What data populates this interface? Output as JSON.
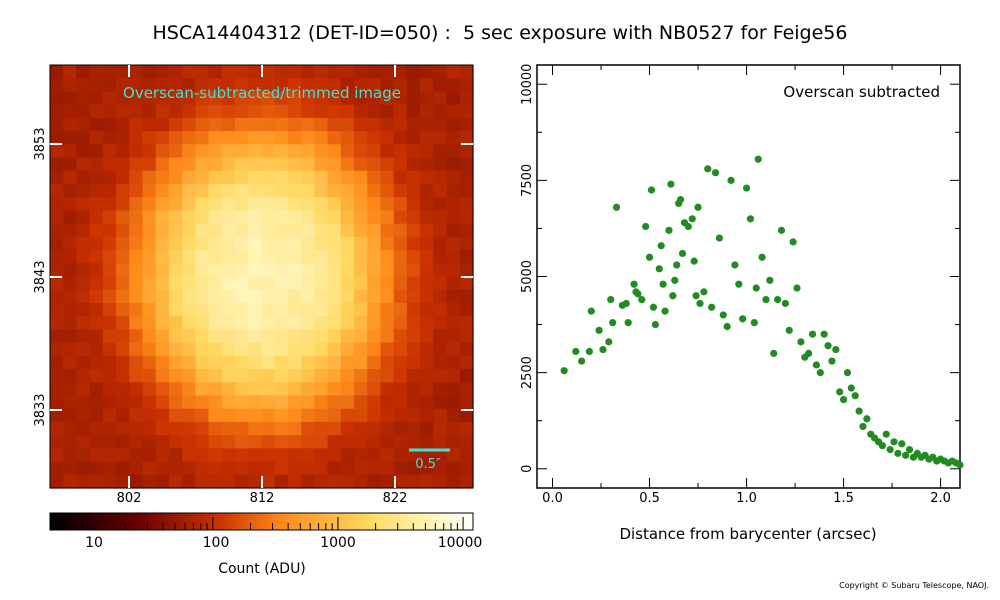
{
  "title": "HSCA14404312 (DET-ID=050) :  5 sec exposure with NB0527 for Feige56",
  "copyright": "Copyright © Subaru Telescope, NAOJ.",
  "image_panel": {
    "label": "Overscan-subtracted/trimmed image",
    "label_color": "#3ee0e0",
    "scale_bar_label": "0.5″",
    "x_ticks": [
      "802",
      "812",
      "822"
    ],
    "y_ticks": [
      "3853",
      "3843",
      "3833"
    ],
    "colorbar": {
      "label": "Count (ADU)",
      "ticks": [
        "10",
        "100",
        "1000",
        "10000"
      ],
      "range": [
        5,
        12000
      ],
      "colormap": "afmhot",
      "scale": "log"
    }
  },
  "chart_data": {
    "type": "scatter",
    "annotation": "Overscan subtracted",
    "xlabel": "Distance from barycenter (arcsec)",
    "ylabel": "",
    "xlim": [
      -0.08,
      2.1
    ],
    "ylim": [
      -500,
      10500
    ],
    "x_ticks": [
      "0.0",
      "0.5",
      "1.0",
      "1.5",
      "2.0"
    ],
    "y_ticks": [
      "0",
      "2500",
      "5000",
      "7500",
      "10000"
    ],
    "marker_color": "#228b22",
    "series": [
      {
        "x": [
          0.06,
          0.12,
          0.15,
          0.19,
          0.2,
          0.24,
          0.26,
          0.29,
          0.3,
          0.31,
          0.33,
          0.36,
          0.38,
          0.39,
          0.42,
          0.43,
          0.44,
          0.46,
          0.48,
          0.5,
          0.51,
          0.52,
          0.53,
          0.55,
          0.56,
          0.57,
          0.58,
          0.6,
          0.61,
          0.62,
          0.63,
          0.64,
          0.65,
          0.66,
          0.67,
          0.68,
          0.7,
          0.72,
          0.73,
          0.74,
          0.75,
          0.76,
          0.78,
          0.8,
          0.82,
          0.84,
          0.86,
          0.88,
          0.9,
          0.92,
          0.94,
          0.96,
          0.98,
          1.0,
          1.02,
          1.04,
          1.05,
          1.06,
          1.08,
          1.1,
          1.12,
          1.14,
          1.16,
          1.18,
          1.2,
          1.22,
          1.24,
          1.26,
          1.28,
          1.3,
          1.32,
          1.34,
          1.36,
          1.38,
          1.4,
          1.42,
          1.44,
          1.46,
          1.48,
          1.5,
          1.52,
          1.54,
          1.56,
          1.58,
          1.6,
          1.62,
          1.64,
          1.66,
          1.68,
          1.7,
          1.72,
          1.74,
          1.76,
          1.78,
          1.8,
          1.82,
          1.84,
          1.86,
          1.88,
          1.9,
          1.92,
          1.94,
          1.96,
          1.98,
          2.0,
          2.02,
          2.04,
          2.06,
          2.08,
          2.1
        ],
        "y": [
          2550,
          3050,
          2800,
          3050,
          4100,
          3600,
          3100,
          3300,
          4400,
          3800,
          6800,
          4250,
          4300,
          3800,
          4800,
          4600,
          4550,
          4400,
          6300,
          5500,
          7250,
          4200,
          3750,
          5200,
          5800,
          4800,
          4100,
          6200,
          7400,
          4500,
          4900,
          5300,
          6900,
          7000,
          5600,
          6400,
          6300,
          6500,
          5400,
          4500,
          6800,
          4300,
          4600,
          7800,
          4200,
          7700,
          6000,
          4000,
          3700,
          7500,
          5300,
          4800,
          3900,
          7300,
          6500,
          3800,
          4700,
          8050,
          5500,
          4400,
          4900,
          3000,
          4400,
          6200,
          4300,
          3600,
          5900,
          4700,
          3300,
          2900,
          3000,
          3500,
          2700,
          2500,
          3500,
          3200,
          2800,
          3100,
          2000,
          1800,
          2500,
          2100,
          1900,
          1500,
          1100,
          1300,
          900,
          800,
          700,
          600,
          900,
          500,
          700,
          400,
          650,
          350,
          500,
          300,
          400,
          300,
          350,
          250,
          300,
          200,
          250,
          200,
          150,
          200,
          150,
          100
        ]
      }
    ]
  }
}
